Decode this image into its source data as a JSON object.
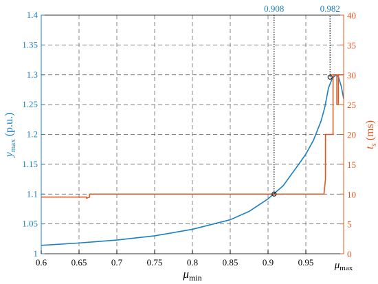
{
  "chart_data": {
    "type": "line",
    "x_axis": {
      "label_main": "μ",
      "label_sub": "min",
      "range": [
        0.6,
        1.0
      ],
      "ticks": [
        0.6,
        0.65,
        0.7,
        0.75,
        0.8,
        0.85,
        0.9,
        0.95
      ],
      "tick_labels": [
        "0.6",
        "0.65",
        "0.7",
        "0.75",
        "0.8",
        "0.85",
        "0.9",
        "0.95"
      ],
      "end_label_main": "μ",
      "end_label_sub": "max"
    },
    "y_left": {
      "label_main": "y",
      "label_sub": "max",
      "label_suffix": " (p.u.)",
      "range": [
        1.0,
        1.4
      ],
      "ticks": [
        1,
        1.05,
        1.1,
        1.15,
        1.2,
        1.25,
        1.3,
        1.35,
        1.4
      ],
      "tick_labels": [
        "1",
        "1.05",
        "1.1",
        "1.15",
        "1.2",
        "1.25",
        "1.3",
        "1.35",
        "1.4"
      ],
      "color": "#1a7fc1"
    },
    "y_right": {
      "label_main": "t",
      "label_sub": "s",
      "label_suffix": " (ms)",
      "range": [
        0,
        40
      ],
      "ticks": [
        0,
        5,
        10,
        15,
        20,
        25,
        30,
        35,
        40
      ],
      "tick_labels": [
        "0",
        "5",
        "10",
        "15",
        "20",
        "25",
        "30",
        "35",
        "40"
      ],
      "color": "#e0581f"
    },
    "grid": true,
    "series": [
      {
        "axis": "left",
        "color": "#1a7fc1",
        "x": [
          0.6,
          0.65,
          0.7,
          0.75,
          0.8,
          0.85,
          0.875,
          0.9,
          0.92,
          0.94,
          0.95,
          0.96,
          0.97,
          0.975,
          0.98,
          0.985,
          0.99,
          0.993,
          0.997,
          1.0
        ],
        "y": [
          1.014,
          1.018,
          1.023,
          1.03,
          1.041,
          1.057,
          1.071,
          1.092,
          1.114,
          1.149,
          1.167,
          1.19,
          1.222,
          1.245,
          1.278,
          1.294,
          1.3,
          1.297,
          1.28,
          1.26
        ]
      },
      {
        "axis": "right",
        "color": "#e0581f",
        "x": [
          0.6,
          0.66,
          0.66,
          0.664,
          0.664,
          0.974,
          0.976,
          0.976,
          0.98,
          0.98,
          0.986,
          0.986,
          0.991,
          0.991,
          0.993,
          0.993,
          1.0
        ],
        "y": [
          9.5,
          9.5,
          9.3,
          9.5,
          10,
          10,
          12.5,
          20,
          20,
          20,
          20,
          30,
          30,
          25,
          25,
          30,
          30
        ]
      }
    ],
    "markers": [
      {
        "x": 0.908,
        "y": 1.1,
        "label": "0.908"
      },
      {
        "x": 0.982,
        "y": 1.296,
        "label": "0.982"
      }
    ]
  }
}
